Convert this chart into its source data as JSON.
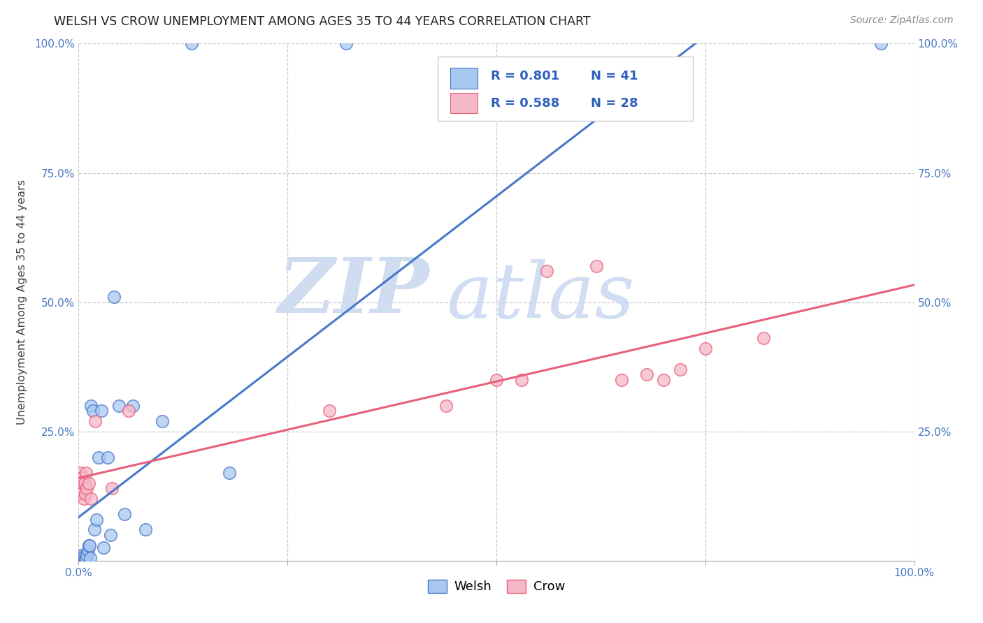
{
  "title": "WELSH VS CROW UNEMPLOYMENT AMONG AGES 35 TO 44 YEARS CORRELATION CHART",
  "source": "Source: ZipAtlas.com",
  "ylabel": "Unemployment Among Ages 35 to 44 years",
  "legend_labels": [
    "Welsh",
    "Crow"
  ],
  "welsh_R": "0.801",
  "welsh_N": "41",
  "crow_R": "0.588",
  "crow_N": "28",
  "welsh_color": "#A8C8F0",
  "crow_color": "#F5B8C8",
  "welsh_line_color": "#4878C8",
  "crow_line_color": "#E8607A",
  "background_color": "#ffffff",
  "watermark_zip": "ZIP",
  "watermark_atlas": "atlas",
  "xlim": [
    0,
    1.0
  ],
  "ylim": [
    0,
    1.0
  ],
  "xtick_positions": [
    0.0,
    0.25,
    0.5,
    0.75,
    1.0
  ],
  "ytick_positions": [
    0.0,
    0.25,
    0.5,
    0.75,
    1.0
  ],
  "xticklabels": [
    "0.0%",
    "",
    "",
    "",
    "100.0%"
  ],
  "yticklabels": [
    "",
    "25.0%",
    "50.0%",
    "75.0%",
    "100.0%"
  ],
  "right_yticklabels": [
    "",
    "25.0%",
    "50.0%",
    "75.0%",
    "100.0%"
  ],
  "welsh_x": [
    0.0,
    0.0,
    0.0,
    0.001,
    0.001,
    0.002,
    0.002,
    0.003,
    0.003,
    0.004,
    0.005,
    0.005,
    0.006,
    0.006,
    0.007,
    0.008,
    0.009,
    0.01,
    0.011,
    0.012,
    0.013,
    0.014,
    0.015,
    0.017,
    0.019,
    0.021,
    0.024,
    0.027,
    0.03,
    0.035,
    0.038,
    0.042,
    0.048,
    0.055,
    0.065,
    0.08,
    0.1,
    0.135,
    0.18,
    0.32,
    0.96
  ],
  "welsh_y": [
    0.0,
    0.002,
    0.004,
    0.0,
    0.006,
    0.002,
    0.008,
    0.0,
    0.01,
    0.003,
    0.0,
    0.005,
    0.002,
    0.008,
    0.003,
    0.0,
    0.004,
    0.01,
    0.02,
    0.03,
    0.03,
    0.005,
    0.3,
    0.29,
    0.06,
    0.08,
    0.2,
    0.29,
    0.025,
    0.2,
    0.05,
    0.51,
    0.3,
    0.09,
    0.3,
    0.06,
    0.27,
    1.0,
    0.17,
    1.0,
    1.0
  ],
  "crow_x": [
    0.0,
    0.001,
    0.002,
    0.003,
    0.004,
    0.005,
    0.006,
    0.007,
    0.008,
    0.009,
    0.01,
    0.012,
    0.015,
    0.02,
    0.04,
    0.06,
    0.3,
    0.44,
    0.5,
    0.53,
    0.56,
    0.62,
    0.65,
    0.68,
    0.7,
    0.72,
    0.75,
    0.82
  ],
  "crow_y": [
    0.15,
    0.13,
    0.17,
    0.13,
    0.16,
    0.16,
    0.12,
    0.15,
    0.13,
    0.17,
    0.14,
    0.15,
    0.12,
    0.27,
    0.14,
    0.29,
    0.29,
    0.3,
    0.35,
    0.35,
    0.56,
    0.57,
    0.35,
    0.36,
    0.35,
    0.37,
    0.41,
    0.43
  ]
}
